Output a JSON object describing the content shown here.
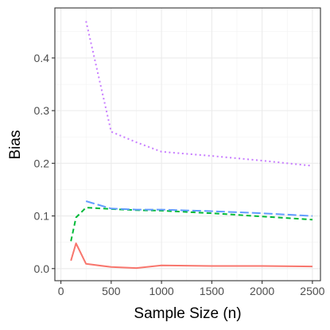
{
  "chart_data": {
    "type": "line",
    "title": "",
    "xlabel": "Sample Size (n)",
    "ylabel": "Bias",
    "xlim": [
      -60,
      2580
    ],
    "ylim": [
      -0.023,
      0.495
    ],
    "x_ticks": [
      0,
      500,
      1000,
      1500,
      2000,
      2500
    ],
    "y_ticks": [
      0.0,
      0.1,
      0.2,
      0.3,
      0.4
    ],
    "x_tick_labels": [
      "0",
      "500",
      "1000",
      "1500",
      "2000",
      "2500"
    ],
    "y_tick_labels": [
      "0.0",
      "0.1",
      "0.2",
      "0.3",
      "0.4"
    ],
    "grid": true,
    "legend": "none",
    "series": [
      {
        "color": "#f8766d",
        "dash": "solid",
        "points": [
          [
            100,
            0.015
          ],
          [
            150,
            0.048
          ],
          [
            250,
            0.009
          ],
          [
            500,
            0.003
          ],
          [
            750,
            0.001
          ],
          [
            1000,
            0.006
          ],
          [
            1500,
            0.005
          ],
          [
            2000,
            0.005
          ],
          [
            2500,
            0.004
          ]
        ]
      },
      {
        "color": "#00ba38",
        "dash": "dashed",
        "points": [
          [
            100,
            0.052
          ],
          [
            150,
            0.097
          ],
          [
            250,
            0.116
          ],
          [
            500,
            0.113
          ],
          [
            750,
            0.111
          ],
          [
            1000,
            0.11
          ],
          [
            1500,
            0.105
          ],
          [
            2000,
            0.099
          ],
          [
            2500,
            0.093
          ]
        ]
      },
      {
        "color": "#619cff",
        "dash": "longdash",
        "points": [
          [
            250,
            0.128
          ],
          [
            500,
            0.114
          ],
          [
            750,
            0.112
          ],
          [
            1000,
            0.112
          ],
          [
            1500,
            0.109
          ],
          [
            2000,
            0.105
          ],
          [
            2500,
            0.1
          ]
        ]
      },
      {
        "color": "#c77cff",
        "dash": "dotted",
        "points": [
          [
            250,
            0.47
          ],
          [
            500,
            0.26
          ],
          [
            750,
            0.24
          ],
          [
            1000,
            0.222
          ],
          [
            1500,
            0.214
          ],
          [
            2000,
            0.205
          ],
          [
            2500,
            0.195
          ]
        ]
      }
    ]
  }
}
